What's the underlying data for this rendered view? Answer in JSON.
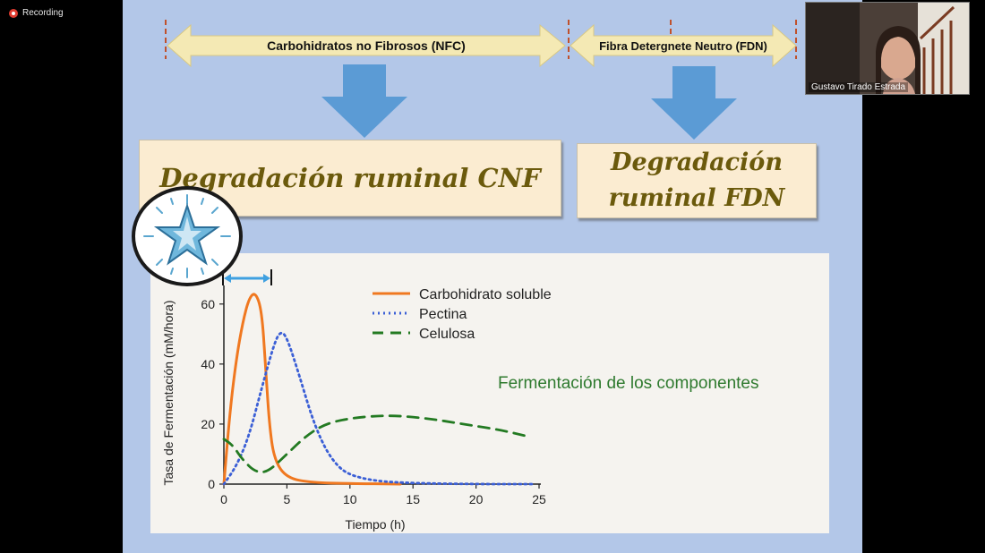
{
  "recording": {
    "label": "Recording"
  },
  "slide": {
    "arrow_nfc_label": "Carbohidratos no Fibrosos (NFC)",
    "arrow_fdn_label": "Fibra Detergnete Neutro (FDN)",
    "panel_cnf": "Degradación ruminal CNF",
    "panel_fdn_line1": "Degradación",
    "panel_fdn_line2": "ruminal FDN",
    "chart_title": "Fermentación de los componentes"
  },
  "participant": {
    "name": "Gustavo Tirado Estrada"
  },
  "colors": {
    "slide_bg": "#b3c7e8",
    "arrow_fill": "#f4e9b4",
    "down_arrow": "#5b9bd5",
    "orange": "#f07820",
    "blue": "#3b5fd6",
    "green": "#237a22"
  },
  "chart_data": {
    "type": "line",
    "xlabel": "Tiempo (h)",
    "ylabel": "Tasa de Fermentación (mM/hora)",
    "xlim": [
      0,
      25
    ],
    "ylim": [
      0,
      65
    ],
    "xticks": [
      0,
      5,
      10,
      15,
      20,
      25
    ],
    "yticks": [
      0,
      20,
      40,
      60
    ],
    "series": [
      {
        "name": "Carbohidrato soluble",
        "color": "#f07820",
        "style": "solid",
        "points": [
          [
            0,
            0
          ],
          [
            0.5,
            25
          ],
          [
            1,
            42
          ],
          [
            1.5,
            54
          ],
          [
            2,
            62
          ],
          [
            2.5,
            64
          ],
          [
            3,
            58
          ],
          [
            3.3,
            40
          ],
          [
            3.6,
            20
          ],
          [
            4,
            8
          ],
          [
            5,
            2
          ],
          [
            7,
            0.5
          ],
          [
            10,
            0.2
          ],
          [
            14,
            0
          ]
        ]
      },
      {
        "name": "Pectina",
        "color": "#3b5fd6",
        "style": "dotted",
        "points": [
          [
            0,
            0
          ],
          [
            1,
            6
          ],
          [
            2,
            16
          ],
          [
            3,
            32
          ],
          [
            4,
            47
          ],
          [
            4.5,
            51
          ],
          [
            5,
            49
          ],
          [
            6,
            36
          ],
          [
            7,
            22
          ],
          [
            8,
            12
          ],
          [
            9,
            6
          ],
          [
            10,
            3
          ],
          [
            12,
            1
          ],
          [
            15,
            0.3
          ],
          [
            20,
            0
          ],
          [
            24.5,
            0
          ]
        ]
      },
      {
        "name": "Celulosa",
        "color": "#237a22",
        "style": "dashed",
        "points": [
          [
            0,
            15
          ],
          [
            0.7,
            13
          ],
          [
            1.5,
            8
          ],
          [
            2.5,
            4
          ],
          [
            3.5,
            4
          ],
          [
            5,
            10
          ],
          [
            6.5,
            16
          ],
          [
            8,
            20
          ],
          [
            10,
            22
          ],
          [
            13,
            23
          ],
          [
            16,
            22
          ],
          [
            19,
            20
          ],
          [
            22,
            18
          ],
          [
            24,
            16
          ]
        ]
      }
    ]
  }
}
